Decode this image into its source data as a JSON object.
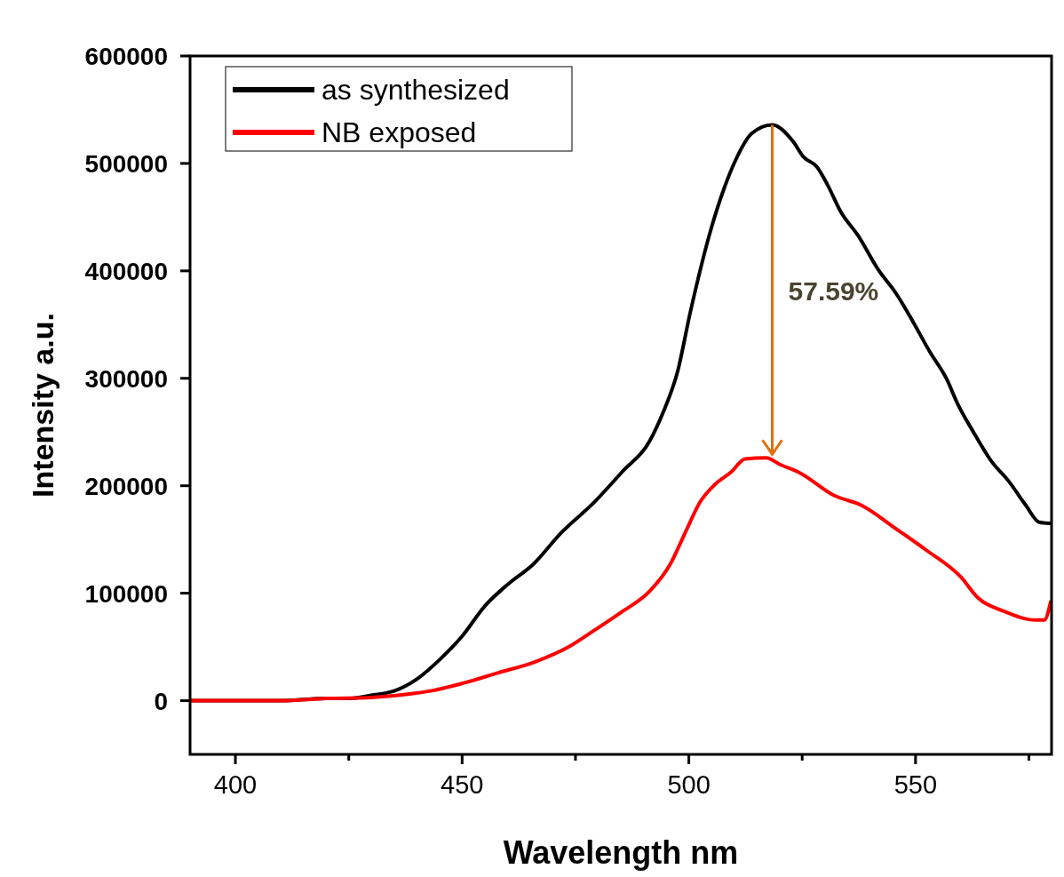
{
  "chart_data": {
    "type": "line",
    "xlabel": "Wavelength nm",
    "ylabel": "Intensity a.u.",
    "xlim": [
      390,
      580
    ],
    "xticks": [
      400,
      {
        "value": 425,
        "label": null
      },
      450,
      {
        "value": 475,
        "label": null
      },
      500,
      {
        "value": 525,
        "label": null
      },
      550,
      {
        "value": 575,
        "label": null
      }
    ],
    "ylim": [
      -50000,
      600000
    ],
    "yticks": [
      0,
      100000,
      200000,
      300000,
      400000,
      500000,
      600000
    ],
    "grid": false,
    "legend": "top left",
    "marker": "none",
    "line_style": "solid",
    "annotations": [
      "57.59%"
    ],
    "series": [
      {
        "name": "as synthesized",
        "color": "#000000",
        "x": [
          390,
          400,
          410,
          420,
          425,
          430,
          435,
          440,
          445,
          450,
          455,
          460,
          465.7,
          471.8,
          479.2,
          485.3,
          491.4,
          494.3,
          497.5,
          500.4,
          504.9,
          507.8,
          510.2,
          513.9,
          518.4,
          522.9,
          525.3,
          528.2,
          530.6,
          533.5,
          537.3,
          541.8,
          545.7,
          549.4,
          553.1,
          556.9,
          559.2,
          562.9,
          566.7,
          570.6,
          574.3,
          577.3,
          579.6
        ],
        "values": [
          0,
          0,
          0,
          2000,
          2000,
          5000,
          9000,
          20000,
          38000,
          60000,
          88000,
          108000,
          127000,
          156000,
          185000,
          213000,
          242000,
          268000,
          306000,
          363000,
          439000,
          477000,
          502000,
          528000,
          536000,
          521000,
          506000,
          497000,
          480000,
          455000,
          433000,
          401000,
          379000,
          353000,
          325000,
          299000,
          277000,
          249000,
          223000,
          204000,
          182000,
          166000,
          165000
        ]
      },
      {
        "name": "NB exposed",
        "color": "#ff0000",
        "x": [
          390,
          400,
          410,
          420,
          430,
          438,
          443,
          450,
          458,
          466,
          473.5,
          479,
          485,
          491.4,
          495.9,
          499.6,
          502.5,
          505.7,
          509.4,
          512.4,
          517.1,
          520,
          524.5,
          532,
          538,
          545.7,
          552.4,
          560,
          563.7,
          569.6,
          576.5,
          578.4,
          579.8
        ],
        "values": [
          0,
          0,
          0,
          2000,
          3000,
          6000,
          9000,
          16000,
          26000,
          36000,
          50000,
          65000,
          82000,
          102000,
          127000,
          160000,
          185000,
          201000,
          213000,
          225000,
          226000,
          220000,
          212000,
          191000,
          182000,
          160000,
          140000,
          115000,
          96000,
          83000,
          75000,
          75000,
          92000
        ]
      }
    ]
  }
}
